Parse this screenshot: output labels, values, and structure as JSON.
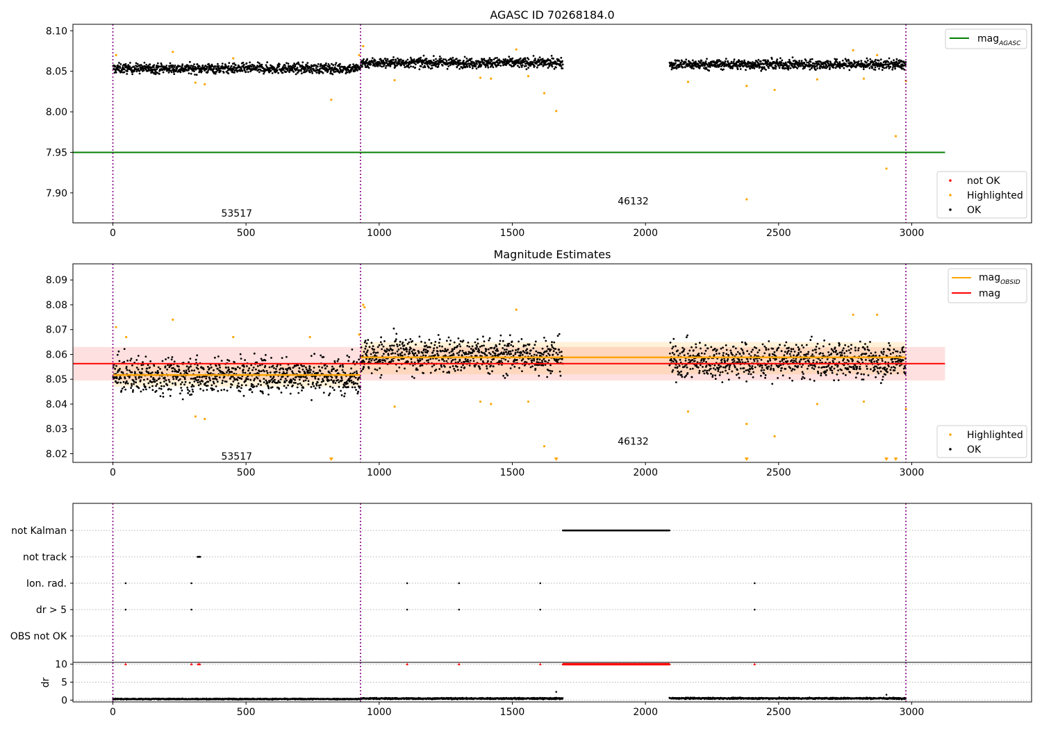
{
  "colors": {
    "ok": "#000000",
    "highlighted": "#ffa500",
    "not_ok": "#ff0000",
    "agasc_line": "#008000",
    "obsid_line": "#ffa500",
    "mag_line": "#ff0000",
    "obsid_vline": "#800080",
    "grid": "#b0b0b0"
  },
  "chart_data": [
    {
      "id": "top",
      "type": "scatter",
      "title": "AGASC ID 70268184.0",
      "xlim": [
        -150,
        3450
      ],
      "ylim": [
        7.863,
        8.108
      ],
      "xticks": [
        0,
        500,
        1000,
        1500,
        2000,
        2500,
        3000
      ],
      "yticks": [
        7.9,
        7.95,
        8.0,
        8.05,
        8.1
      ],
      "ytick_labels": [
        "7.90",
        "7.95",
        "8.00",
        "8.05",
        "8.10"
      ],
      "obsid_boundaries": [
        0,
        930,
        2978
      ],
      "obsid_labels": [
        {
          "text": "53517",
          "x": 465,
          "y": 7.875
        },
        {
          "text": "46132",
          "x": 1954,
          "y": 7.89
        }
      ],
      "agasc_mag": {
        "value": 7.95,
        "xmin": -150,
        "xmax": 3125
      },
      "ok_segments": [
        {
          "x0": 0,
          "x1": 930,
          "mean": 8.0535,
          "spread": 0.0055
        },
        {
          "x0": 930,
          "x1": 1690,
          "mean": 8.0605,
          "spread": 0.0055
        },
        {
          "x0": 2090,
          "x1": 2978,
          "mean": 8.0585,
          "spread": 0.0055
        }
      ],
      "highlighted": [
        [
          12,
          8.07
        ],
        [
          225,
          8.074
        ],
        [
          310,
          8.036
        ],
        [
          345,
          8.034
        ],
        [
          452,
          8.066
        ],
        [
          820,
          8.015
        ],
        [
          925,
          8.07
        ],
        [
          940,
          8.081
        ],
        [
          1058,
          8.039
        ],
        [
          1380,
          8.042
        ],
        [
          1420,
          8.041
        ],
        [
          1515,
          8.077
        ],
        [
          1560,
          8.044
        ],
        [
          1620,
          8.023
        ],
        [
          1665,
          8.001
        ],
        [
          2160,
          8.037
        ],
        [
          2380,
          7.892
        ],
        [
          2380,
          8.032
        ],
        [
          2485,
          8.027
        ],
        [
          2645,
          8.04
        ],
        [
          2780,
          8.076
        ],
        [
          2820,
          8.041
        ],
        [
          2870,
          8.07
        ],
        [
          2905,
          7.93
        ],
        [
          2940,
          7.97
        ],
        [
          2978,
          8.038
        ]
      ],
      "not_ok": [],
      "legends": [
        {
          "position": "upper right",
          "entries": [
            {
              "label": "mag",
              "sub": "AGASC",
              "kind": "line",
              "color_key": "agasc_line"
            }
          ]
        },
        {
          "position": "lower right",
          "entries": [
            {
              "label": "not OK",
              "kind": "dot",
              "color_key": "not_ok"
            },
            {
              "label": "Highlighted",
              "kind": "dot",
              "color_key": "highlighted"
            },
            {
              "label": "OK",
              "kind": "dot",
              "color_key": "ok"
            }
          ]
        }
      ]
    },
    {
      "id": "middle",
      "type": "scatter",
      "title": "Magnitude Estimates",
      "xlim": [
        -150,
        3450
      ],
      "ylim": [
        8.0165,
        8.0965
      ],
      "xticks": [
        0,
        500,
        1000,
        1500,
        2000,
        2500,
        3000
      ],
      "yticks": [
        8.02,
        8.03,
        8.04,
        8.05,
        8.06,
        8.07,
        8.08,
        8.09
      ],
      "ytick_labels": [
        "8.02",
        "8.03",
        "8.04",
        "8.05",
        "8.06",
        "8.07",
        "8.08",
        "8.09"
      ],
      "obsid_boundaries": [
        0,
        930,
        2978
      ],
      "obsid_labels": [
        {
          "text": "53517",
          "x": 465,
          "y": 8.019
        },
        {
          "text": "46132",
          "x": 1954,
          "y": 8.025
        }
      ],
      "mag": {
        "value": 8.0563,
        "band": [
          8.0495,
          8.063
        ],
        "xmin": -150,
        "xmax": 3125
      },
      "mag_obsid": [
        {
          "x0": 0,
          "x1": 930,
          "value": 8.0517,
          "band": [
            8.047,
            8.056
          ]
        },
        {
          "x0": 930,
          "x1": 2978,
          "value": 8.0588,
          "band": [
            8.052,
            8.065
          ]
        }
      ],
      "ok_segments": [
        {
          "x0": 0,
          "x1": 930,
          "mean": 8.0515,
          "spread": 0.0065
        },
        {
          "x0": 930,
          "x1": 1690,
          "mean": 8.0595,
          "spread": 0.0065
        },
        {
          "x0": 2090,
          "x1": 2978,
          "mean": 8.0575,
          "spread": 0.0065
        }
      ],
      "highlighted": [
        [
          12,
          8.071
        ],
        [
          50,
          8.067
        ],
        [
          225,
          8.074
        ],
        [
          310,
          8.035
        ],
        [
          345,
          8.034
        ],
        [
          452,
          8.067
        ],
        [
          740,
          8.067
        ],
        [
          925,
          8.068
        ],
        [
          940,
          8.08
        ],
        [
          945,
          8.079
        ],
        [
          1058,
          8.039
        ],
        [
          1380,
          8.041
        ],
        [
          1420,
          8.04
        ],
        [
          1515,
          8.078
        ],
        [
          1560,
          8.041
        ],
        [
          1620,
          8.023
        ],
        [
          2160,
          8.037
        ],
        [
          2380,
          8.032
        ],
        [
          2485,
          8.027
        ],
        [
          2645,
          8.04
        ],
        [
          2780,
          8.076
        ],
        [
          2820,
          8.041
        ],
        [
          2870,
          8.076
        ],
        [
          2978,
          8.038
        ]
      ],
      "offscale_low": [
        820,
        1665,
        2380,
        2905,
        2940
      ],
      "legends": [
        {
          "position": "upper right",
          "entries": [
            {
              "label": "mag",
              "sub": "OBSID",
              "kind": "line",
              "color_key": "obsid_line"
            },
            {
              "label": "mag",
              "kind": "line",
              "color_key": "mag_line"
            }
          ]
        },
        {
          "position": "lower right",
          "entries": [
            {
              "label": "Highlighted",
              "kind": "dot",
              "color_key": "highlighted"
            },
            {
              "label": "OK",
              "kind": "dot",
              "color_key": "ok"
            }
          ]
        }
      ]
    },
    {
      "id": "flags",
      "type": "scatter",
      "xlim": [
        -150,
        3450
      ],
      "categories": [
        "not Kalman",
        "not track",
        "Ion. rad.",
        "dr > 5",
        "OBS not OK"
      ],
      "obsid_boundaries": [
        0,
        930,
        2978
      ],
      "flag_points": {
        "not Kalman": {
          "ranges": [
            [
              1690,
              2090
            ]
          ],
          "points": []
        },
        "not track": {
          "ranges": [
            [
              318,
              328
            ]
          ],
          "points": []
        },
        "Ion. rad.": {
          "ranges": [],
          "points": [
            48,
            295,
            1105,
            1300,
            1605,
            2410
          ]
        },
        "dr > 5": {
          "ranges": [],
          "points": [
            48,
            295,
            1105,
            1300,
            1605,
            2410
          ]
        },
        "OBS not OK": {
          "ranges": [],
          "points": []
        }
      }
    },
    {
      "id": "dr",
      "type": "scatter",
      "xlim": [
        -150,
        3450
      ],
      "ylim": [
        -0.5,
        10.5
      ],
      "ylabel": "dr",
      "yticks": [
        0,
        5,
        10
      ],
      "ytick_labels": [
        "0",
        "5",
        "10"
      ],
      "xticks": [
        0,
        500,
        1000,
        1500,
        2000,
        2500,
        3000
      ],
      "obsid_boundaries": [
        0,
        930,
        2978
      ],
      "ok_segments": [
        {
          "x0": 0,
          "x1": 930,
          "mean": 0.3,
          "spread": 0.15
        },
        {
          "x0": 930,
          "x1": 1690,
          "mean": 0.45,
          "spread": 0.2
        },
        {
          "x0": 2090,
          "x1": 2978,
          "mean": 0.5,
          "spread": 0.2
        }
      ],
      "outliers_ok": [
        [
          1665,
          2.3
        ],
        [
          2905,
          1.5
        ]
      ],
      "capped_red": {
        "value": 10,
        "points": [
          48,
          295,
          320,
          326,
          1105,
          1300,
          1605,
          2410
        ],
        "ranges": [
          [
            1690,
            2090
          ]
        ]
      }
    }
  ]
}
